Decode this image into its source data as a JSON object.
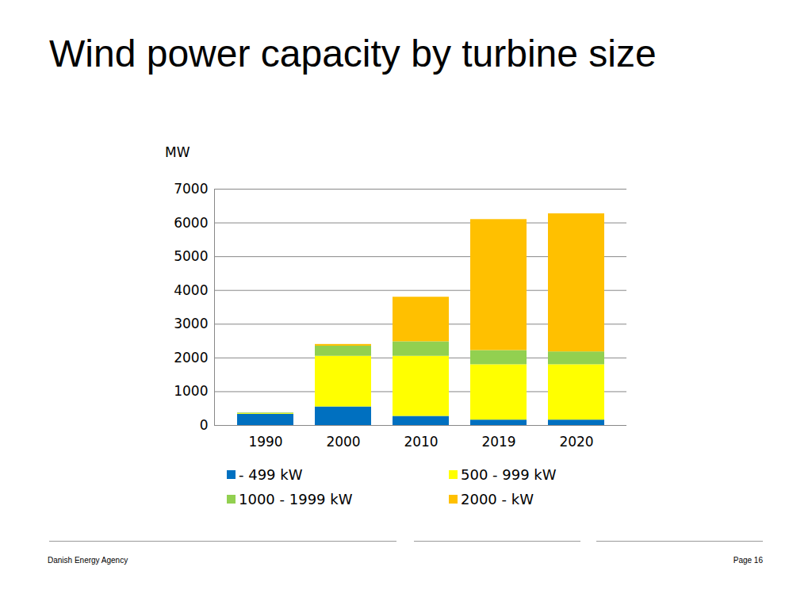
{
  "chart_data": {
    "type": "bar",
    "stacked": true,
    "title": "Wind power capacity by turbine size",
    "y_label": "MW",
    "categories": [
      "1990",
      "2000",
      "2010",
      "2019",
      "2020"
    ],
    "series": [
      {
        "name": "- 499 kW",
        "color": "#0070c0",
        "values": [
          330,
          550,
          270,
          160,
          160
        ]
      },
      {
        "name": "500 - 999 kW",
        "color": "#ffff00",
        "values": [
          20,
          1500,
          1780,
          1640,
          1640
        ]
      },
      {
        "name": "1000 - 1999 kW",
        "color": "#92d050",
        "values": [
          20,
          300,
          430,
          420,
          380
        ]
      },
      {
        "name": "2000 - kW",
        "color": "#ffc000",
        "values": [
          0,
          50,
          1320,
          3880,
          4090
        ]
      }
    ],
    "ylim": [
      0,
      7000
    ],
    "yticks": [
      0,
      1000,
      2000,
      3000,
      4000,
      5000,
      6000,
      7000
    ],
    "grid": true,
    "legend": "bottom"
  },
  "footer": {
    "source": "Danish Energy Agency",
    "page": "Page 16"
  }
}
